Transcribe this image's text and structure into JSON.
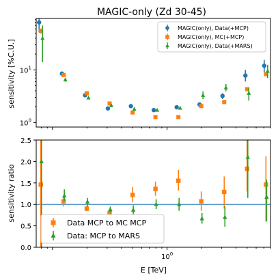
{
  "title": "MAGIC-only (Zd 30-45)",
  "colors": {
    "blue": "#1f77b4",
    "orange": "#ff7f0e",
    "green": "#2ca02c",
    "refline": "#1f77b4"
  },
  "chart_data": [
    {
      "type": "scatter",
      "title": "MAGIC-only (Zd 30-45)",
      "xlabel": "",
      "ylabel": "sensitivity [%C.U.]",
      "xscale": "log",
      "yscale": "log",
      "xlim": [
        0.072,
        8.0
      ],
      "ylim": [
        0.82,
        95
      ],
      "ytick_labels": [
        "10^0",
        "10^1"
      ],
      "legend_position": "top-right",
      "series": [
        {
          "name": "MAGIC(only), Data(+MCP)",
          "marker": "circle",
          "color": "#1f77b4",
          "points": [
            {
              "x": 0.079,
              "y": 80,
              "lo": 52,
              "hi": 95
            },
            {
              "x": 0.125,
              "y": 8.5,
              "lo": 7.8,
              "hi": 9.1
            },
            {
              "x": 0.199,
              "y": 3.3,
              "lo": 3.1,
              "hi": 3.5
            },
            {
              "x": 0.315,
              "y": 1.85,
              "lo": 1.75,
              "hi": 1.95
            },
            {
              "x": 0.5,
              "y": 2.05,
              "lo": 1.95,
              "hi": 2.15
            },
            {
              "x": 0.792,
              "y": 1.72,
              "lo": 1.67,
              "hi": 1.77
            },
            {
              "x": 1.256,
              "y": 1.95,
              "lo": 1.88,
              "hi": 2.02
            },
            {
              "x": 1.99,
              "y": 2.2,
              "lo": 2.0,
              "hi": 2.4
            },
            {
              "x": 3.155,
              "y": 3.2,
              "lo": 2.8,
              "hi": 3.6
            },
            {
              "x": 5.0,
              "y": 7.8,
              "lo": 6.0,
              "hi": 10.0
            },
            {
              "x": 7.3,
              "y": 12,
              "lo": 9.0,
              "hi": 15.5
            }
          ]
        },
        {
          "name": "MAGIC(only), MC(+MCP)",
          "marker": "square",
          "color": "#ff7f0e",
          "points": [
            {
              "x": 0.079,
              "y": 55,
              "lo": 49,
              "hi": 61
            },
            {
              "x": 0.125,
              "y": 8.0,
              "lo": 7.6,
              "hi": 8.4
            },
            {
              "x": 0.199,
              "y": 3.6,
              "lo": 3.45,
              "hi": 3.75
            },
            {
              "x": 0.315,
              "y": 2.3,
              "lo": 2.22,
              "hi": 2.38
            },
            {
              "x": 0.5,
              "y": 1.55,
              "lo": 1.5,
              "hi": 1.6
            },
            {
              "x": 0.792,
              "y": 1.27,
              "lo": 1.24,
              "hi": 1.3
            },
            {
              "x": 1.256,
              "y": 1.27,
              "lo": 1.24,
              "hi": 1.3
            },
            {
              "x": 1.99,
              "y": 2.05,
              "lo": 1.98,
              "hi": 2.12
            },
            {
              "x": 3.155,
              "y": 2.45,
              "lo": 2.35,
              "hi": 2.55
            },
            {
              "x": 5.0,
              "y": 4.3,
              "lo": 4.1,
              "hi": 4.5
            },
            {
              "x": 7.3,
              "y": 8.3,
              "lo": 7.8,
              "hi": 8.8
            }
          ]
        },
        {
          "name": "MAGIC(only), Data(+MARS)",
          "marker": "triangle",
          "color": "#2ca02c",
          "points": [
            {
              "x": 0.079,
              "y": 40,
              "lo": 14,
              "hi": 70
            },
            {
              "x": 0.125,
              "y": 6.5,
              "lo": 6.0,
              "hi": 7.0
            },
            {
              "x": 0.199,
              "y": 2.95,
              "lo": 2.8,
              "hi": 3.1
            },
            {
              "x": 0.315,
              "y": 2.1,
              "lo": 2.0,
              "hi": 2.2
            },
            {
              "x": 0.5,
              "y": 1.8,
              "lo": 1.7,
              "hi": 1.9
            },
            {
              "x": 0.792,
              "y": 1.72,
              "lo": 1.65,
              "hi": 1.79
            },
            {
              "x": 1.256,
              "y": 1.88,
              "lo": 1.8,
              "hi": 1.96
            },
            {
              "x": 1.99,
              "y": 3.3,
              "lo": 2.8,
              "hi": 3.9
            },
            {
              "x": 3.155,
              "y": 4.6,
              "lo": 3.9,
              "hi": 5.4
            },
            {
              "x": 5.0,
              "y": 3.6,
              "lo": 2.6,
              "hi": 4.6
            },
            {
              "x": 7.3,
              "y": 9.5,
              "lo": 7.0,
              "hi": 12.5
            }
          ]
        }
      ]
    },
    {
      "type": "scatter",
      "xlabel": "E [TeV]",
      "ylabel": "sensitivity ratio",
      "xscale": "log",
      "yscale": "linear",
      "xlim": [
        0.072,
        8.0
      ],
      "ylim": [
        0.0,
        2.5
      ],
      "yticks": [
        "0.0",
        "0.5",
        "1.0",
        "1.5",
        "2.0",
        "2.5"
      ],
      "xticks": [
        "10^0"
      ],
      "reference_line": 1.0,
      "legend_position": "bottom-left",
      "series": [
        {
          "name": "Data MCP to MC MCP",
          "marker": "square",
          "color": "#ff7f0e",
          "points": [
            {
              "x": 0.079,
              "y": 1.46,
              "lo": 0.0,
              "hi": 2.5
            },
            {
              "x": 0.125,
              "y": 1.07,
              "lo": 0.95,
              "hi": 1.2
            },
            {
              "x": 0.199,
              "y": 0.9,
              "lo": 0.84,
              "hi": 0.96
            },
            {
              "x": 0.315,
              "y": 0.8,
              "lo": 0.74,
              "hi": 0.86
            },
            {
              "x": 0.5,
              "y": 1.22,
              "lo": 1.05,
              "hi": 1.4
            },
            {
              "x": 0.792,
              "y": 1.36,
              "lo": 1.2,
              "hi": 1.53
            },
            {
              "x": 1.256,
              "y": 1.55,
              "lo": 1.32,
              "hi": 1.8
            },
            {
              "x": 1.99,
              "y": 1.07,
              "lo": 0.85,
              "hi": 1.3
            },
            {
              "x": 3.155,
              "y": 1.29,
              "lo": 0.9,
              "hi": 1.65
            },
            {
              "x": 5.0,
              "y": 1.83,
              "lo": 1.3,
              "hi": 2.5
            },
            {
              "x": 7.3,
              "y": 1.46,
              "lo": 0.6,
              "hi": 2.12
            }
          ]
        },
        {
          "name": "Data: MCP to MARS",
          "marker": "triangle",
          "color": "#2ca02c",
          "points": [
            {
              "x": 0.079,
              "y": 2.0,
              "lo": 0.0,
              "hi": 2.5
            },
            {
              "x": 0.125,
              "y": 1.2,
              "lo": 1.08,
              "hi": 1.35
            },
            {
              "x": 0.199,
              "y": 1.06,
              "lo": 0.95,
              "hi": 1.15
            },
            {
              "x": 0.315,
              "y": 0.88,
              "lo": 0.81,
              "hi": 0.95
            },
            {
              "x": 0.5,
              "y": 0.87,
              "lo": 0.75,
              "hi": 0.98
            },
            {
              "x": 0.792,
              "y": 1.0,
              "lo": 0.89,
              "hi": 1.12
            },
            {
              "x": 1.256,
              "y": 1.0,
              "lo": 0.85,
              "hi": 1.15
            },
            {
              "x": 1.99,
              "y": 0.67,
              "lo": 0.55,
              "hi": 0.8
            },
            {
              "x": 3.155,
              "y": 0.7,
              "lo": 0.48,
              "hi": 0.95
            },
            {
              "x": 5.0,
              "y": 2.1,
              "lo": 1.15,
              "hi": 2.5
            },
            {
              "x": 7.3,
              "y": 1.17,
              "lo": 0.6,
              "hi": 1.58
            }
          ]
        }
      ]
    }
  ]
}
